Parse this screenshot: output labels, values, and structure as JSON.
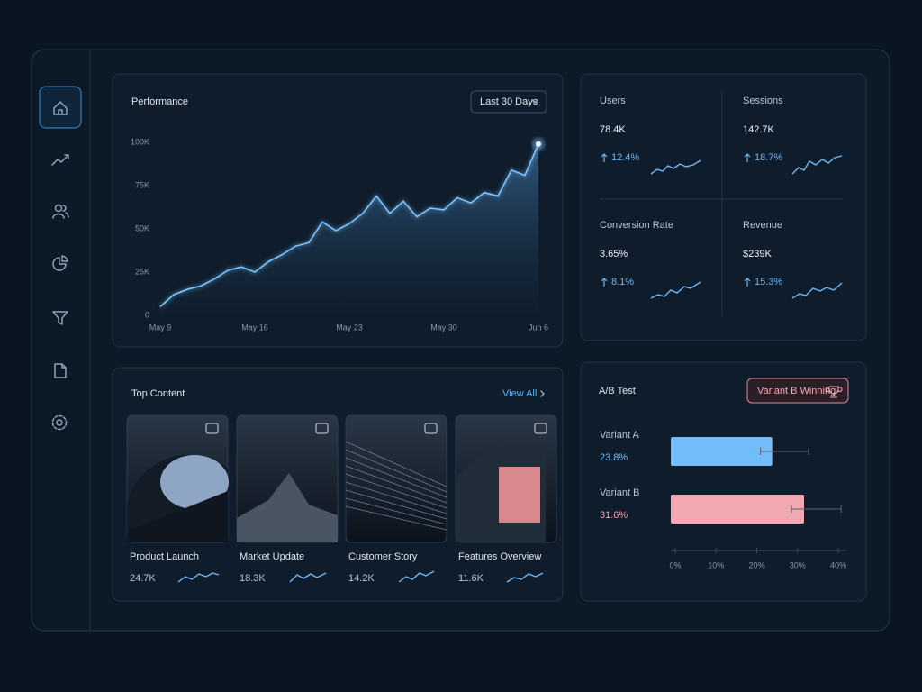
{
  "performance": {
    "title": "Performance",
    "filter": "Last 30 Days"
  },
  "stats": [
    {
      "label": "Users",
      "value": "78.4K",
      "change": "12.4%"
    },
    {
      "label": "Sessions",
      "value": "142.7K",
      "change": "18.7%"
    },
    {
      "label": "Conversion Rate",
      "value": "3.65%",
      "change": "8.1%"
    },
    {
      "label": "Revenue",
      "value": "$239K",
      "change": "15.3%"
    }
  ],
  "top_content": {
    "title": "Top Content",
    "link": "View All",
    "items": [
      {
        "title": "Product Launch",
        "views": "24.7K"
      },
      {
        "title": "Market Update",
        "views": "18.3K"
      },
      {
        "title": "Customer Story",
        "views": "14.2K"
      },
      {
        "title": "Features Overview",
        "views": "11.6K"
      }
    ]
  },
  "ab_test": {
    "title": "A/B Test",
    "badge": "Variant B Winning"
  },
  "chart_data": [
    {
      "type": "area",
      "color": "#7cc4ff",
      "categories": [
        "May 9",
        null,
        null,
        null,
        null,
        null,
        null,
        "May 16",
        null,
        null,
        null,
        null,
        null,
        null,
        "May 23",
        null,
        null,
        null,
        null,
        null,
        null,
        "May 30",
        null,
        null,
        null,
        null,
        null,
        null,
        "Jun 6"
      ],
      "values": [
        5000,
        12000,
        15000,
        17000,
        21000,
        26000,
        28000,
        25000,
        31000,
        35000,
        40000,
        42000,
        54000,
        49000,
        53000,
        59000,
        69000,
        59000,
        66000,
        57000,
        62000,
        61000,
        68000,
        65000,
        71000,
        69000,
        84000,
        81000,
        99000
      ],
      "ylim": [
        0,
        100000
      ],
      "yticks": [
        0,
        {
          "value": 25000,
          "label": "25K"
        },
        {
          "value": 50000,
          "label": "50K"
        },
        {
          "value": 75000,
          "label": "75K"
        },
        {
          "value": 100000,
          "label": "100K"
        }
      ],
      "grid": false
    },
    {
      "type": "hbar",
      "categories": [
        "Variant A",
        "Variant B"
      ],
      "values": [
        23.8,
        31.6
      ],
      "value_labels": [
        "23.8%",
        "31.6%"
      ],
      "error_minus": [
        2.9,
        3.1
      ],
      "error_plus": [
        8.9,
        9.1
      ],
      "colors": [
        "#72bdf7",
        "#f2a9b1"
      ],
      "xlim": [
        0,
        40
      ],
      "xticks": [
        {
          "value": 0,
          "label": "0%"
        },
        {
          "value": 10,
          "label": "10%"
        },
        {
          "value": 20,
          "label": "20%"
        },
        {
          "value": 30,
          "label": "30%"
        },
        {
          "value": 40,
          "label": "40%"
        }
      ]
    }
  ]
}
